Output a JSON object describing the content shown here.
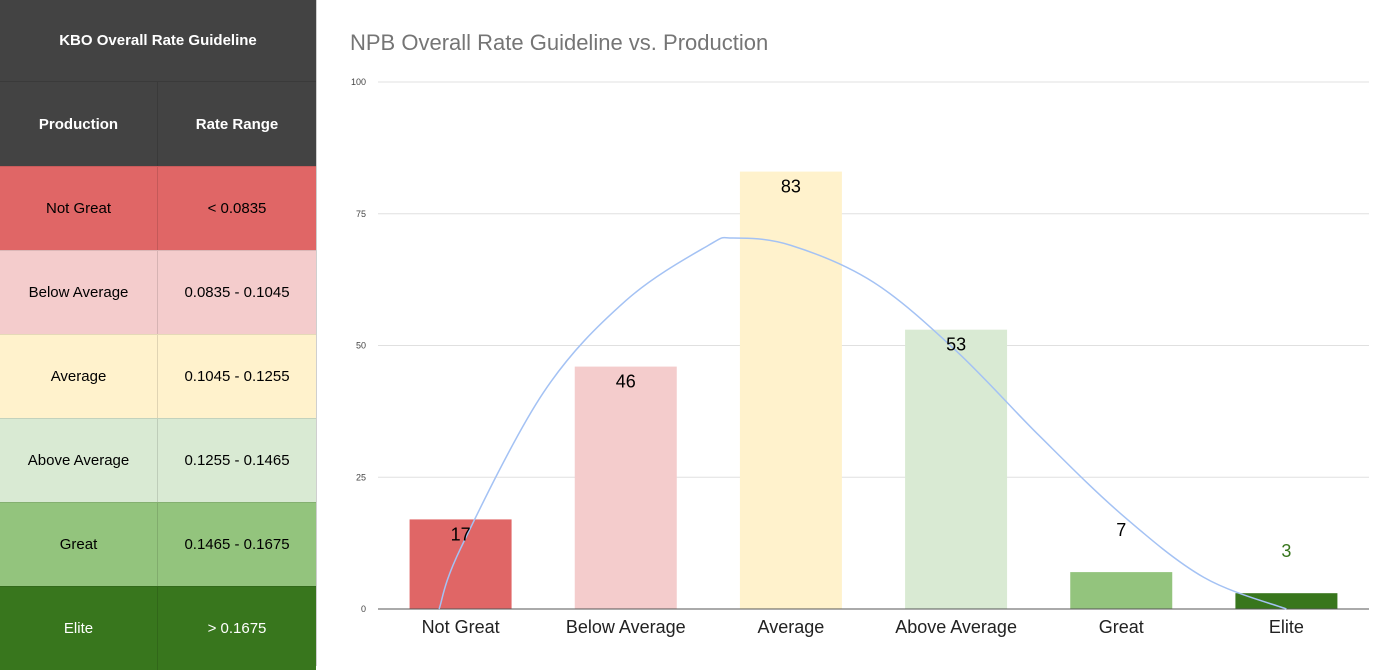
{
  "table": {
    "title": "KBO Overall Rate Guideline",
    "headers": [
      "Production",
      "Rate Range"
    ],
    "rows": [
      {
        "production": "Not Great",
        "range": "< 0.0835",
        "color": "#e06666",
        "text_color": "#000000"
      },
      {
        "production": "Below Average",
        "range": "0.0835 - 0.1045",
        "color": "#f4cccc",
        "text_color": "#000000"
      },
      {
        "production": "Average",
        "range": "0.1045 - 0.1255",
        "color": "#fff2cc",
        "text_color": "#000000"
      },
      {
        "production": "Above Average",
        "range": "0.1255 - 0.1465",
        "color": "#d9ead3",
        "text_color": "#000000"
      },
      {
        "production": "Great",
        "range": "0.1465 - 0.1675",
        "color": "#93c47d",
        "text_color": "#000000"
      },
      {
        "production": "Elite",
        "range": "> 0.1675",
        "color": "#38761d",
        "text_color": "#ffffff"
      }
    ]
  },
  "chart_data": {
    "type": "bar",
    "title": "NPB Overall Rate Guideline vs. Production",
    "xlabel": "",
    "ylabel": "",
    "categories": [
      "Not Great",
      "Below Average",
      "Average",
      "Above Average",
      "Great",
      "Elite"
    ],
    "values": [
      17,
      46,
      83,
      53,
      7,
      3
    ],
    "bar_colors": [
      "#e06666",
      "#f4cccc",
      "#fff2cc",
      "#d9ead3",
      "#93c47d",
      "#38761d"
    ],
    "label_colors": [
      "#000000",
      "#000000",
      "#000000",
      "#000000",
      "#000000",
      "#38761d"
    ],
    "ylim": [
      0,
      100
    ],
    "yticks": [
      0,
      25,
      50,
      75,
      100
    ],
    "grid": true,
    "legend": "none",
    "trendline": {
      "type": "curve",
      "color": "#a4c2f4",
      "points": [
        [
          -0.13,
          0
        ],
        [
          0,
          11.5
        ],
        [
          0.5,
          41
        ],
        [
          1,
          58.5
        ],
        [
          1.5,
          69
        ],
        [
          1.65,
          70.4
        ],
        [
          2,
          69
        ],
        [
          2.5,
          62
        ],
        [
          3,
          49
        ],
        [
          3.5,
          33
        ],
        [
          4,
          18
        ],
        [
          4.5,
          6
        ],
        [
          5,
          0
        ]
      ]
    }
  }
}
